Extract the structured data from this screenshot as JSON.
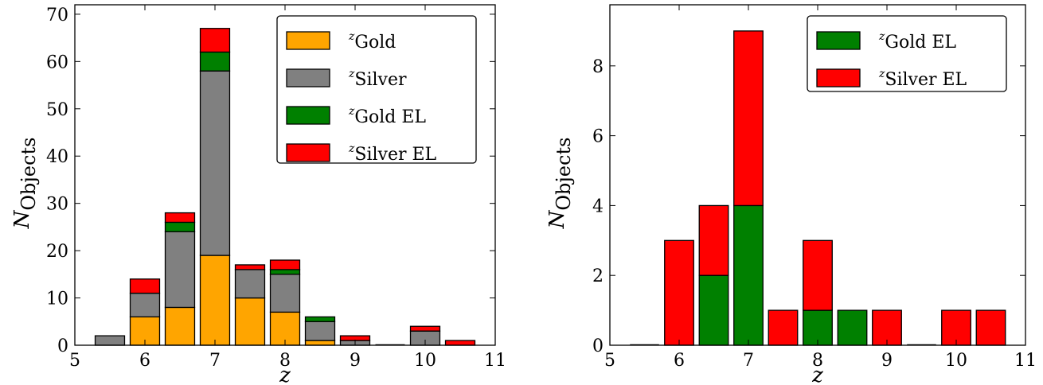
{
  "chart_data": [
    {
      "type": "bar",
      "stacked": true,
      "x": [
        5.5,
        6.0,
        6.5,
        7.0,
        7.5,
        8.0,
        8.5,
        9.0,
        9.5,
        10.0,
        10.5
      ],
      "series": [
        {
          "name": "Gold",
          "name_super": "z",
          "color": "#ffa500",
          "values": [
            0,
            6,
            8,
            19,
            10,
            7,
            1,
            0,
            0,
            0,
            0
          ]
        },
        {
          "name": "Silver",
          "name_super": "z",
          "color": "#808080",
          "values": [
            2,
            5,
            16,
            39,
            6,
            8,
            4,
            1,
            0,
            3,
            0
          ]
        },
        {
          "name": "Gold EL",
          "name_super": "z",
          "color": "#008000",
          "values": [
            0,
            0,
            2,
            4,
            0,
            1,
            1,
            0,
            0,
            0,
            0
          ]
        },
        {
          "name": "Silver EL",
          "name_super": "z",
          "color": "#ff0000",
          "values": [
            0,
            3,
            2,
            5,
            1,
            2,
            0,
            1,
            0,
            1,
            1
          ]
        }
      ],
      "xlabel": "z",
      "ylabel_main": "N",
      "ylabel_sub": "Objects",
      "xlim": [
        5,
        11
      ],
      "ylim": [
        0,
        72
      ],
      "xticks": [
        "5",
        "6",
        "7",
        "8",
        "9",
        "10",
        "11"
      ],
      "yticks": [
        "0",
        "10",
        "20",
        "30",
        "40",
        "50",
        "60",
        "70"
      ],
      "legend": "top-right",
      "grid": false
    },
    {
      "type": "bar",
      "stacked": true,
      "x": [
        5.5,
        6.0,
        6.5,
        7.0,
        7.5,
        8.0,
        8.5,
        9.0,
        9.5,
        10.0,
        10.5
      ],
      "series": [
        {
          "name": "Gold EL",
          "name_super": "z",
          "color": "#008000",
          "values": [
            0,
            0,
            2,
            4,
            0,
            1,
            1,
            0,
            0,
            0,
            0
          ]
        },
        {
          "name": "Silver EL",
          "name_super": "z",
          "color": "#ff0000",
          "values": [
            0,
            3,
            2,
            5,
            1,
            2,
            0,
            1,
            0,
            1,
            1
          ]
        }
      ],
      "xlabel": "z",
      "ylabel_main": "N",
      "ylabel_sub": "Objects",
      "xlim": [
        5,
        11
      ],
      "ylim": [
        0,
        9.75
      ],
      "xticks": [
        "5",
        "6",
        "7",
        "8",
        "9",
        "10",
        "11"
      ],
      "yticks": [
        "0",
        "2",
        "4",
        "6",
        "8"
      ],
      "legend": "top-right",
      "grid": false
    }
  ]
}
